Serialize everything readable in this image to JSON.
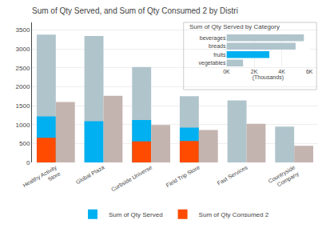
{
  "chart_data": [
    {
      "type": "bar",
      "title": "Sum of Qty Served, and Sum of Qty Consumed 2 by Distri",
      "categories": [
        "Healthy Activity\nStore",
        "Global Plaza",
        "Curbside Universe",
        "Field Trip Store",
        "Fast Services",
        "Countryside\nCompany"
      ],
      "series": [
        {
          "color": "#B0C4CC",
          "values": [
            3380,
            3340,
            2520,
            1750,
            1640,
            950
          ]
        },
        {
          "name": "Sum of Qty Served",
          "color": "#00B0F0",
          "values": [
            1220,
            1090,
            1120,
            920,
            0,
            0
          ]
        },
        {
          "name": "Sum of Qty Consumed 2",
          "color": "#FF4B00",
          "values": [
            650,
            0,
            560,
            570,
            0,
            0
          ]
        },
        {
          "color": "#C4B4B0",
          "values": [
            1600,
            1760,
            990,
            860,
            1020,
            440
          ]
        }
      ],
      "stacked": false,
      "ylim": [
        0,
        3700
      ],
      "yticks": [
        0,
        500,
        1000,
        1500,
        2000,
        2500,
        3000,
        3500
      ],
      "grid": true,
      "legend": "bottom"
    },
    {
      "type": "bar",
      "orientation": "horizontal",
      "title": "Sum of Qty Served by Category",
      "xlabel": "(Thousands)",
      "categories": [
        "beverages",
        "breads",
        "fruits",
        "vegetables"
      ],
      "series": [
        {
          "color": "#B0C4CC",
          "values": [
            5600,
            5000,
            0,
            1200
          ]
        },
        {
          "color": "#00B0F0",
          "values": [
            0,
            0,
            3100,
            0
          ]
        }
      ],
      "stacked": false,
      "xlim": [
        0,
        6000
      ],
      "xticks": [
        {
          "value": 0,
          "label": "0K"
        },
        {
          "value": 2000,
          "label": "2K"
        },
        {
          "value": 4000,
          "label": "4K"
        },
        {
          "value": 6000,
          "label": "6K"
        }
      ],
      "grid": true
    }
  ]
}
